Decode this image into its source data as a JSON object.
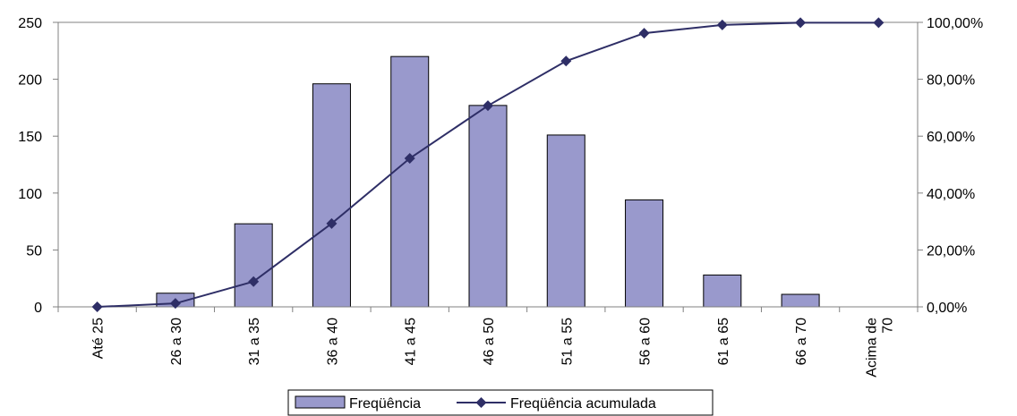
{
  "chart_data": {
    "type": "bar",
    "categories": [
      "Até 25",
      "26 a 30",
      "31 a 35",
      "36 a 40",
      "41 a 45",
      "46 a 50",
      "51 a 55",
      "56 a 60",
      "61 a 65",
      "66 a 70",
      "Acima de 70"
    ],
    "category_lines": [
      [
        "Até 25"
      ],
      [
        "26 a 30"
      ],
      [
        "31 a 35"
      ],
      [
        "36 a 40"
      ],
      [
        "41 a 45"
      ],
      [
        "46 a 50"
      ],
      [
        "51 a 55"
      ],
      [
        "56 a 60"
      ],
      [
        "61 a 65"
      ],
      [
        "66 a 70"
      ],
      [
        "Acima de",
        "70"
      ]
    ],
    "series": [
      {
        "name": "Freqüência",
        "type": "bar",
        "axis": "left",
        "values": [
          0,
          12,
          73,
          196,
          220,
          177,
          151,
          94,
          28,
          11,
          0
        ]
      },
      {
        "name": "Freqüência acumulada",
        "type": "line",
        "axis": "right",
        "values": [
          0.0,
          1.2,
          8.9,
          29.3,
          52.2,
          70.7,
          86.4,
          96.2,
          99.1,
          99.9,
          99.9
        ]
      }
    ],
    "left_axis": {
      "ylim": [
        0,
        250
      ],
      "ticks": [
        "0",
        "50",
        "100",
        "150",
        "200",
        "250"
      ]
    },
    "right_axis": {
      "ylim": [
        0,
        100
      ],
      "ticks": [
        "0,00%",
        "20,00%",
        "40,00%",
        "60,00%",
        "80,00%",
        "100,00%"
      ]
    },
    "legend_position": "bottom",
    "grid": false,
    "colors": {
      "bar_fill": "#9999cc",
      "bar_stroke": "#000000",
      "line": "#2e2e66",
      "marker": "#2e2e66",
      "axis": "#808080"
    }
  }
}
